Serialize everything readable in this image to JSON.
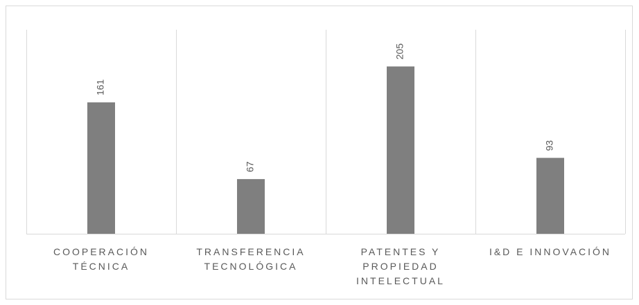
{
  "chart_data": {
    "type": "bar",
    "categories": [
      "COOPERACIÓN TÉCNICA",
      "TRANSFERENCIA TECNOLÓGICA",
      "PATENTES Y PROPIEDAD INTELECTUAL",
      "I&D E INNOVACIÓN"
    ],
    "values": [
      161,
      67,
      205,
      93
    ],
    "color": "#7f7f7f",
    "ylim": [
      0,
      250
    ],
    "grid": true
  }
}
